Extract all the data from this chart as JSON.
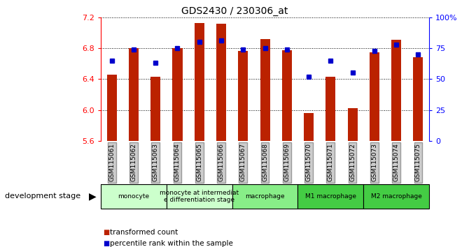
{
  "title": "GDS2430 / 230306_at",
  "samples": [
    "GSM115061",
    "GSM115062",
    "GSM115063",
    "GSM115064",
    "GSM115065",
    "GSM115066",
    "GSM115067",
    "GSM115068",
    "GSM115069",
    "GSM115070",
    "GSM115071",
    "GSM115072",
    "GSM115073",
    "GSM115074",
    "GSM115075"
  ],
  "bar_values": [
    6.46,
    6.8,
    6.43,
    6.8,
    7.13,
    7.12,
    6.76,
    6.92,
    6.77,
    5.96,
    6.43,
    6.02,
    6.75,
    6.91,
    6.68
  ],
  "percentile_values": [
    65,
    74,
    63,
    75,
    80,
    81,
    74,
    75,
    74,
    52,
    65,
    55,
    73,
    78,
    70
  ],
  "ylim_left": [
    5.6,
    7.2
  ],
  "ylim_right": [
    0,
    100
  ],
  "yticks_left": [
    5.6,
    6.0,
    6.4,
    6.8,
    7.2
  ],
  "yticks_right": [
    0,
    25,
    50,
    75,
    100
  ],
  "bar_color": "#bb2200",
  "dot_color": "#0000cc",
  "background_color": "#ffffff",
  "stage_groups": [
    {
      "label": "monocyte",
      "start": 0,
      "end": 3,
      "color": "#ccffcc"
    },
    {
      "label": "monocyte at intermediat\ne differentiation stage",
      "start": 3,
      "end": 6,
      "color": "#ccffcc"
    },
    {
      "label": "macrophage",
      "start": 6,
      "end": 9,
      "color": "#88ee88"
    },
    {
      "label": "M1 macrophage",
      "start": 9,
      "end": 12,
      "color": "#44cc44"
    },
    {
      "label": "M2 macrophage",
      "start": 12,
      "end": 15,
      "color": "#44cc44"
    }
  ],
  "tick_bg_color": "#cccccc",
  "legend_items": [
    {
      "label": "transformed count",
      "color": "#bb2200"
    },
    {
      "label": "percentile rank within the sample",
      "color": "#0000cc"
    }
  ],
  "dev_stage_label": "development stage"
}
